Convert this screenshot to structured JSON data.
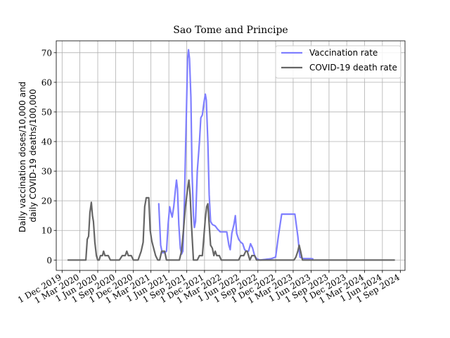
{
  "chart_data": {
    "type": "line",
    "title": "Sao Tome and Principe",
    "ylabel_lines": [
      "Daily vaccination doses/10,000 and",
      "daily COVID-19 deaths/100,000"
    ],
    "xlabel": "",
    "ylim": [
      -3.5,
      74
    ],
    "xlim": [
      "2019-11-01",
      "2024-09-25"
    ],
    "grid": true,
    "legend_placement": "upper-right",
    "yticks": [
      0,
      10,
      20,
      30,
      40,
      50,
      60,
      70
    ],
    "xticks": [
      "2019-12-01",
      "2020-03-01",
      "2020-06-01",
      "2020-09-01",
      "2020-12-01",
      "2021-03-01",
      "2021-06-01",
      "2021-09-01",
      "2021-12-01",
      "2022-03-01",
      "2022-06-01",
      "2022-09-01",
      "2022-12-01",
      "2023-03-01",
      "2023-06-01",
      "2023-09-01",
      "2023-12-01",
      "2024-03-01",
      "2024-06-01",
      "2024-09-01"
    ],
    "xtick_labels": [
      "1 Dec 2019",
      "1 Mar 2020",
      "1 Jun 2020",
      "1 Sep 2020",
      "1 Dec 2020",
      "1 Mar 2021",
      "1 Jun 2021",
      "1 Sep 2021",
      "1 Dec 2021",
      "1 Mar 2022",
      "1 Jun 2022",
      "1 Sep 2022",
      "1 Dec 2022",
      "1 Mar 2023",
      "1 Jun 2023",
      "1 Sep 2023",
      "1 Dec 2023",
      "1 Mar 2024",
      "1 Jun 2024",
      "1 Sep 2024"
    ],
    "series": [
      {
        "name": "Vaccination rate",
        "color": "#7f7fff",
        "points": [
          [
            "2021-04-10",
            19
          ],
          [
            "2021-04-20",
            5
          ],
          [
            "2021-04-28",
            2.5
          ],
          [
            "2021-05-10",
            2.5
          ],
          [
            "2021-05-20",
            3
          ],
          [
            "2021-05-28",
            12
          ],
          [
            "2021-06-05",
            18
          ],
          [
            "2021-06-12",
            16
          ],
          [
            "2021-06-18",
            14.5
          ],
          [
            "2021-06-26",
            18
          ],
          [
            "2021-07-05",
            24
          ],
          [
            "2021-07-10",
            27
          ],
          [
            "2021-07-15",
            24
          ],
          [
            "2021-07-22",
            12
          ],
          [
            "2021-07-30",
            4
          ],
          [
            "2021-08-05",
            2
          ],
          [
            "2021-08-12",
            3
          ],
          [
            "2021-08-20",
            20
          ],
          [
            "2021-08-30",
            50
          ],
          [
            "2021-09-05",
            68
          ],
          [
            "2021-09-10",
            71
          ],
          [
            "2021-09-15",
            68
          ],
          [
            "2021-09-22",
            55
          ],
          [
            "2021-09-28",
            30
          ],
          [
            "2021-10-05",
            15
          ],
          [
            "2021-10-10",
            11
          ],
          [
            "2021-10-16",
            13
          ],
          [
            "2021-10-25",
            30
          ],
          [
            "2021-11-05",
            40
          ],
          [
            "2021-11-12",
            48
          ],
          [
            "2021-11-20",
            49
          ],
          [
            "2021-11-28",
            53
          ],
          [
            "2021-12-05",
            56
          ],
          [
            "2021-12-10",
            54
          ],
          [
            "2021-12-18",
            40
          ],
          [
            "2021-12-25",
            22
          ],
          [
            "2022-01-01",
            13
          ],
          [
            "2022-01-10",
            12
          ],
          [
            "2022-01-25",
            11.5
          ],
          [
            "2022-02-05",
            10.5
          ],
          [
            "2022-02-20",
            9.5
          ],
          [
            "2022-03-10",
            9.5
          ],
          [
            "2022-03-25",
            9.5
          ],
          [
            "2022-04-05",
            5
          ],
          [
            "2022-04-12",
            3.5
          ],
          [
            "2022-04-20",
            9
          ],
          [
            "2022-05-01",
            12
          ],
          [
            "2022-05-08",
            15
          ],
          [
            "2022-05-15",
            9
          ],
          [
            "2022-05-25",
            7
          ],
          [
            "2022-06-05",
            6
          ],
          [
            "2022-06-15",
            5.5
          ],
          [
            "2022-06-25",
            3.5
          ],
          [
            "2022-07-05",
            3
          ],
          [
            "2022-07-15",
            3
          ],
          [
            "2022-07-25",
            5.5
          ],
          [
            "2022-08-05",
            4
          ],
          [
            "2022-08-15",
            1.5
          ],
          [
            "2022-08-25",
            0.5
          ],
          [
            "2022-09-10",
            0
          ],
          [
            "2022-10-10",
            0.2
          ],
          [
            "2022-11-10",
            0.5
          ],
          [
            "2022-12-01",
            1
          ],
          [
            "2022-12-15",
            8
          ],
          [
            "2023-01-01",
            15.5
          ],
          [
            "2023-02-01",
            15.5
          ],
          [
            "2023-03-01",
            15.5
          ],
          [
            "2023-03-10",
            15.5
          ],
          [
            "2023-03-25",
            8
          ],
          [
            "2023-04-05",
            1
          ],
          [
            "2023-04-20",
            0.5
          ],
          [
            "2023-05-10",
            0.5
          ],
          [
            "2023-06-01",
            0.5
          ],
          [
            "2023-06-10",
            0.4
          ]
        ]
      },
      {
        "name": "COVID-19 death rate",
        "color": "#666666",
        "points": [
          [
            "2020-01-01",
            0
          ],
          [
            "2020-03-05",
            0
          ],
          [
            "2020-04-01",
            0
          ],
          [
            "2020-04-08",
            7
          ],
          [
            "2020-04-15",
            8
          ],
          [
            "2020-04-22",
            16
          ],
          [
            "2020-04-29",
            19.5
          ],
          [
            "2020-05-05",
            15
          ],
          [
            "2020-05-10",
            13
          ],
          [
            "2020-05-17",
            6
          ],
          [
            "2020-05-25",
            1.5
          ],
          [
            "2020-06-01",
            0
          ],
          [
            "2020-06-08",
            0
          ],
          [
            "2020-06-15",
            1.5
          ],
          [
            "2020-06-25",
            1.5
          ],
          [
            "2020-07-01",
            3
          ],
          [
            "2020-07-08",
            1.5
          ],
          [
            "2020-07-15",
            1.5
          ],
          [
            "2020-07-25",
            1.5
          ],
          [
            "2020-08-05",
            0
          ],
          [
            "2020-09-20",
            0
          ],
          [
            "2020-10-05",
            1.5
          ],
          [
            "2020-10-20",
            1.5
          ],
          [
            "2020-10-28",
            3
          ],
          [
            "2020-11-05",
            1.5
          ],
          [
            "2020-11-20",
            1.5
          ],
          [
            "2020-12-01",
            0
          ],
          [
            "2020-12-25",
            0
          ],
          [
            "2021-01-10",
            3
          ],
          [
            "2021-01-20",
            6
          ],
          [
            "2021-01-28",
            18
          ],
          [
            "2021-02-05",
            21
          ],
          [
            "2021-02-18",
            21
          ],
          [
            "2021-02-25",
            10
          ],
          [
            "2021-03-05",
            6.5
          ],
          [
            "2021-03-15",
            4
          ],
          [
            "2021-03-25",
            1.5
          ],
          [
            "2021-04-05",
            0
          ],
          [
            "2021-04-15",
            0
          ],
          [
            "2021-04-25",
            3
          ],
          [
            "2021-05-10",
            3
          ],
          [
            "2021-05-20",
            0
          ],
          [
            "2021-07-25",
            0
          ],
          [
            "2021-08-05",
            3
          ],
          [
            "2021-08-15",
            10
          ],
          [
            "2021-08-25",
            18
          ],
          [
            "2021-09-05",
            24
          ],
          [
            "2021-09-12",
            27
          ],
          [
            "2021-09-18",
            22
          ],
          [
            "2021-09-25",
            12
          ],
          [
            "2021-10-05",
            0
          ],
          [
            "2021-10-25",
            0
          ],
          [
            "2021-11-05",
            1.5
          ],
          [
            "2021-11-20",
            1.5
          ],
          [
            "2021-11-28",
            8
          ],
          [
            "2021-12-05",
            14
          ],
          [
            "2021-12-12",
            18
          ],
          [
            "2021-12-18",
            19
          ],
          [
            "2021-12-25",
            12
          ],
          [
            "2022-01-01",
            5
          ],
          [
            "2022-01-10",
            4
          ],
          [
            "2022-01-18",
            1.5
          ],
          [
            "2022-01-25",
            3
          ],
          [
            "2022-02-02",
            1.5
          ],
          [
            "2022-02-15",
            1.5
          ],
          [
            "2022-02-25",
            0
          ],
          [
            "2022-05-25",
            0
          ],
          [
            "2022-06-05",
            1.5
          ],
          [
            "2022-06-20",
            1.5
          ],
          [
            "2022-07-01",
            3
          ],
          [
            "2022-07-08",
            3
          ],
          [
            "2022-07-15",
            1.5
          ],
          [
            "2022-07-22",
            0
          ],
          [
            "2022-08-01",
            1.5
          ],
          [
            "2022-08-15",
            1.5
          ],
          [
            "2022-08-25",
            0
          ],
          [
            "2023-03-05",
            0
          ],
          [
            "2023-03-15",
            1
          ],
          [
            "2023-03-25",
            3
          ],
          [
            "2023-04-01",
            5
          ],
          [
            "2023-04-08",
            3
          ],
          [
            "2023-04-18",
            0
          ],
          [
            "2024-08-01",
            0
          ]
        ]
      }
    ]
  }
}
